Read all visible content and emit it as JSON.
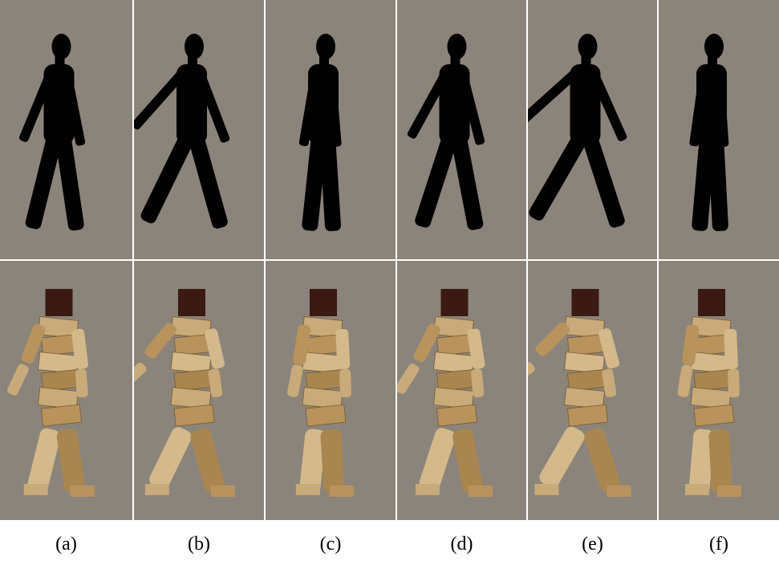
{
  "figure": {
    "panels": [
      {
        "label": "(a)"
      },
      {
        "label": "(b)"
      },
      {
        "label": "(c)"
      },
      {
        "label": "(d)"
      },
      {
        "label": "(e)"
      },
      {
        "label": "(f)"
      }
    ]
  }
}
